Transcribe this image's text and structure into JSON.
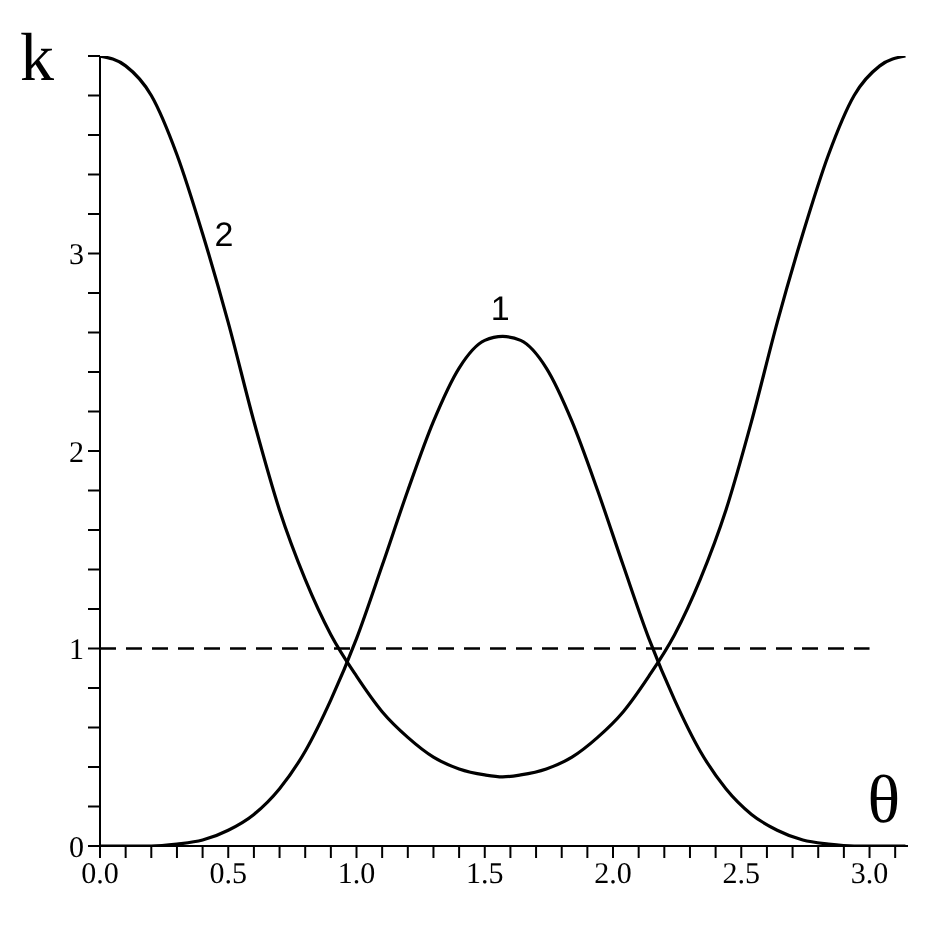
{
  "chart_data": {
    "type": "line",
    "xlabel": "θ",
    "ylabel": "k",
    "x": [
      0,
      0.1,
      0.2,
      0.3,
      0.4,
      0.5,
      0.6,
      0.7,
      0.8,
      0.9,
      1.0,
      1.1,
      1.2,
      1.3,
      1.4,
      1.5,
      1.57,
      1.64,
      1.74,
      1.84,
      1.94,
      2.04,
      2.14,
      2.24,
      2.34,
      2.44,
      2.54,
      2.64,
      2.74,
      2.84,
      2.94,
      3.04,
      3.14
    ],
    "series": [
      {
        "name": "1",
        "color": "#000000",
        "values": [
          0,
          0,
          0,
          0.01,
          0.03,
          0.08,
          0.16,
          0.29,
          0.48,
          0.74,
          1.05,
          1.42,
          1.8,
          2.15,
          2.42,
          2.56,
          2.58,
          2.56,
          2.42,
          2.15,
          1.8,
          1.42,
          1.05,
          0.74,
          0.48,
          0.29,
          0.16,
          0.08,
          0.03,
          0.01,
          0,
          0,
          0
        ]
      },
      {
        "name": "2",
        "color": "#000000",
        "values": [
          4,
          3.95,
          3.8,
          3.5,
          3.1,
          2.65,
          2.15,
          1.7,
          1.35,
          1.07,
          0.86,
          0.68,
          0.55,
          0.45,
          0.39,
          0.36,
          0.35,
          0.36,
          0.39,
          0.45,
          0.55,
          0.68,
          0.86,
          1.07,
          1.35,
          1.7,
          2.15,
          2.65,
          3.1,
          3.5,
          3.8,
          3.95,
          4
        ]
      }
    ],
    "xlim": [
      0,
      3.15
    ],
    "xticks": [
      {
        "value": 0,
        "label": "0.0"
      },
      {
        "value": 0.1,
        "label": null
      },
      {
        "value": 0.2,
        "label": null
      },
      {
        "value": 0.3,
        "label": null
      },
      {
        "value": 0.4,
        "label": null
      },
      {
        "value": 0.5,
        "label": "0.5"
      },
      {
        "value": 0.6,
        "label": null
      },
      {
        "value": 0.7,
        "label": null
      },
      {
        "value": 0.8,
        "label": null
      },
      {
        "value": 0.9,
        "label": null
      },
      {
        "value": 1,
        "label": "1.0"
      },
      {
        "value": 1.1,
        "label": null
      },
      {
        "value": 1.2,
        "label": null
      },
      {
        "value": 1.3,
        "label": null
      },
      {
        "value": 1.4,
        "label": null
      },
      {
        "value": 1.5,
        "label": "1.5"
      },
      {
        "value": 1.6,
        "label": null
      },
      {
        "value": 1.7,
        "label": null
      },
      {
        "value": 1.8,
        "label": null
      },
      {
        "value": 1.9,
        "label": null
      },
      {
        "value": 2,
        "label": "2.0"
      },
      {
        "value": 2.1,
        "label": null
      },
      {
        "value": 2.2,
        "label": null
      },
      {
        "value": 2.3,
        "label": null
      },
      {
        "value": 2.4,
        "label": null
      },
      {
        "value": 2.5,
        "label": "2.5"
      },
      {
        "value": 2.6,
        "label": null
      },
      {
        "value": 2.7,
        "label": null
      },
      {
        "value": 2.8,
        "label": null
      },
      {
        "value": 2.9,
        "label": null
      },
      {
        "value": 3,
        "label": "3.0"
      },
      {
        "value": 3.1,
        "label": null
      }
    ],
    "ylim": [
      0,
      4
    ],
    "yticks": [
      0,
      {
        "value": 0.2,
        "label": null
      },
      {
        "value": 0.4,
        "label": null
      },
      {
        "value": 0.6,
        "label": null
      },
      {
        "value": 0.8,
        "label": null
      },
      1,
      {
        "value": 1.2,
        "label": null
      },
      {
        "value": 1.4,
        "label": null
      },
      {
        "value": 1.6,
        "label": null
      },
      {
        "value": 1.8,
        "label": null
      },
      2,
      {
        "value": 2.2,
        "label": null
      },
      {
        "value": 2.4,
        "label": null
      },
      {
        "value": 2.6,
        "label": null
      },
      {
        "value": 2.8,
        "label": null
      },
      3,
      {
        "value": 3.2,
        "label": null
      },
      {
        "value": 3.4,
        "label": null
      },
      {
        "value": 3.6,
        "label": null
      },
      {
        "value": 3.8,
        "label": null
      },
      {
        "value": 4,
        "label": null
      }
    ],
    "ref_lines": [
      {
        "axis": "y",
        "value": 1,
        "line_style": "dashed",
        "color": "#000000"
      }
    ],
    "marker": "none",
    "line_style": "solid"
  }
}
